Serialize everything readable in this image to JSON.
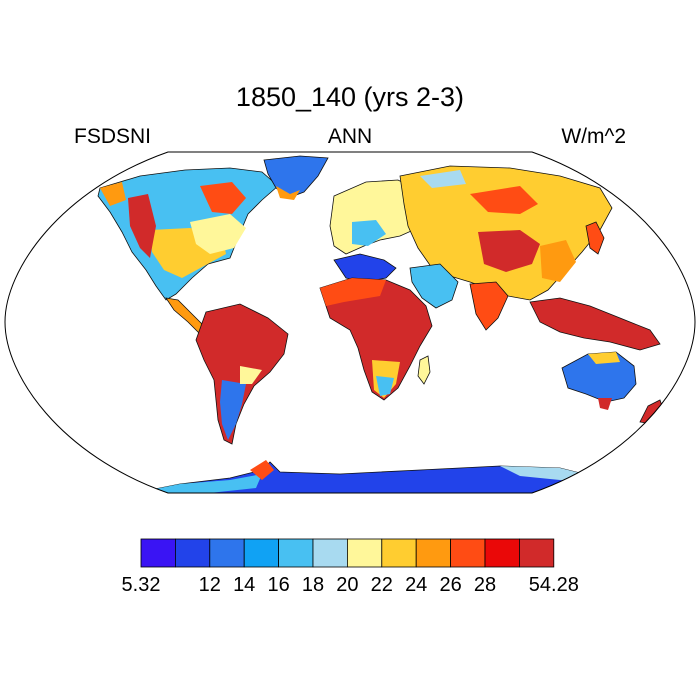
{
  "title": "1850_140 (yrs 2-3)",
  "left_label": "FSDSNI",
  "center_label": "ANN",
  "right_label": "W/m^2",
  "colorbar": {
    "colors": [
      "#3a14f4",
      "#2243ea",
      "#2e75ec",
      "#10a2f4",
      "#48c0f2",
      "#a8daf0",
      "#fff79a",
      "#ffcd30",
      "#ff9a10",
      "#ff4c14",
      "#ea0808",
      "#d12a2a"
    ],
    "labels": [
      "5.32",
      "12",
      "14",
      "16",
      "18",
      "20",
      "22",
      "24",
      "26",
      "28",
      "54.28"
    ],
    "label_at_boundary": [
      0,
      2,
      3,
      4,
      5,
      6,
      7,
      8,
      9,
      10,
      12
    ]
  }
}
